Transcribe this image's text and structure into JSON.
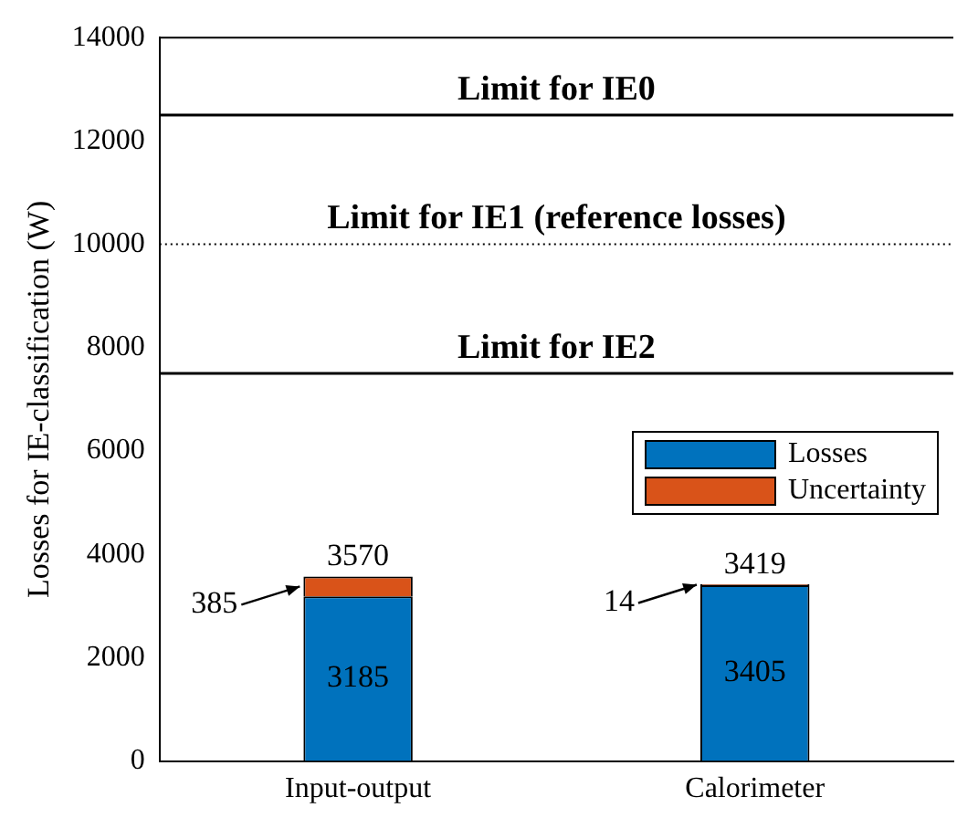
{
  "chart_data": {
    "type": "bar",
    "ylabel": "Losses for IE-classification (W)",
    "categories": [
      "Input-output",
      "Calorimeter"
    ],
    "series": [
      {
        "name": "Losses",
        "color": "#0072bd",
        "values": [
          3185,
          3405
        ],
        "value_labels": [
          "3185",
          "3405"
        ]
      },
      {
        "name": "Uncertainty",
        "color": "#d95319",
        "values": [
          385,
          14
        ],
        "value_labels": [
          "385",
          "14"
        ]
      }
    ],
    "stacked": true,
    "totals": [
      "3570",
      "3419"
    ],
    "ylim": [
      0,
      14000
    ],
    "yticks": [
      0,
      2000,
      4000,
      6000,
      8000,
      10000,
      12000,
      14000
    ],
    "grid": false,
    "legend": "right",
    "ref_lines": [
      {
        "axis": "y",
        "value": 12500,
        "label": "Limit for IE0",
        "color": "#000000",
        "line_style": "solid"
      },
      {
        "axis": "y",
        "value": 10000,
        "label": "Limit for IE1 (reference losses)",
        "color": "#000000",
        "line_style": "dotted"
      },
      {
        "axis": "y",
        "value": 7500,
        "label": "Limit for IE2",
        "color": "#000000",
        "line_style": "solid"
      }
    ]
  }
}
